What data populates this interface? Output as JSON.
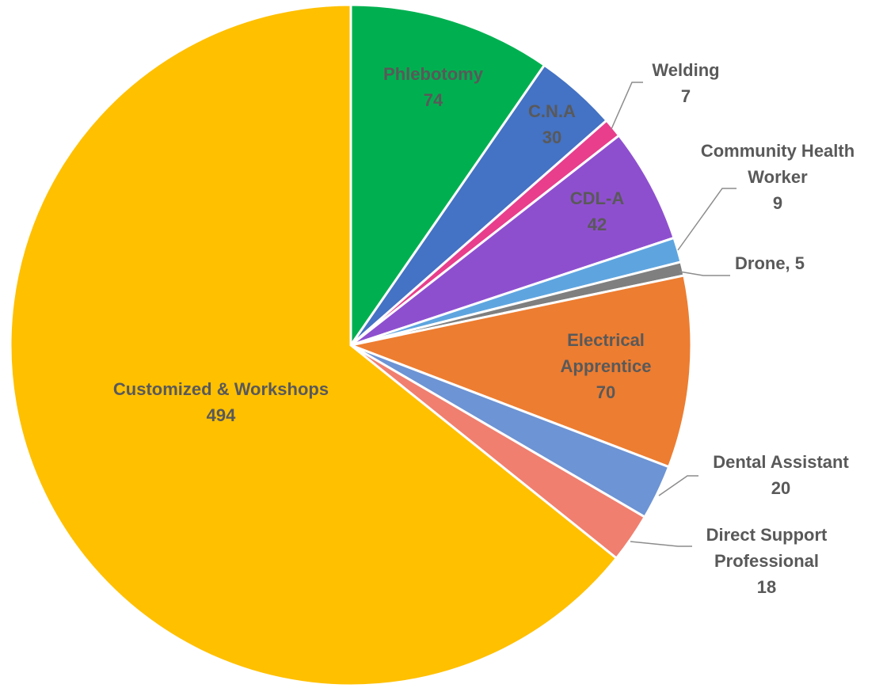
{
  "chart_data": {
    "type": "pie",
    "title": "",
    "slices": [
      {
        "label": "Phlebotomy",
        "value": 74,
        "color": "#00b050",
        "label_lines": [
          "Phlebotomy",
          "74"
        ]
      },
      {
        "label": "C.N.A",
        "value": 30,
        "color": "#4472c4",
        "label_lines": [
          "C.N.A",
          "30"
        ]
      },
      {
        "label": "Welding",
        "value": 7,
        "color": "#e83e8c",
        "label_lines": [
          "Welding",
          "7"
        ]
      },
      {
        "label": "CDL-A",
        "value": 42,
        "color": "#8e4fcf",
        "label_lines": [
          "CDL-A",
          "42"
        ]
      },
      {
        "label": "Community Health Worker",
        "value": 9,
        "color": "#5ea5e0",
        "label_lines": [
          "Community Health",
          "Worker",
          "9"
        ]
      },
      {
        "label": "Drone",
        "value": 5,
        "color": "#7f7f7f",
        "label_lines": [
          "Drone, 5"
        ]
      },
      {
        "label": "Electrical Apprentice",
        "value": 70,
        "color": "#ed7d31",
        "label_lines": [
          "Electrical",
          "Apprentice",
          "70"
        ]
      },
      {
        "label": "Dental Assistant",
        "value": 20,
        "color": "#6d94d4",
        "label_lines": [
          "Dental Assistant",
          "20"
        ]
      },
      {
        "label": "Direct Support Professional",
        "value": 18,
        "color": "#f07f6f",
        "label_lines": [
          "Direct Support",
          "Professional",
          "18"
        ]
      },
      {
        "label": "Customized & Workshops",
        "value": 494,
        "color": "#ffc000",
        "label_lines": [
          "Customized & Workshops",
          "494"
        ]
      }
    ],
    "start_angle": "12 o'clock",
    "direction": "clockwise",
    "legend": "none"
  }
}
